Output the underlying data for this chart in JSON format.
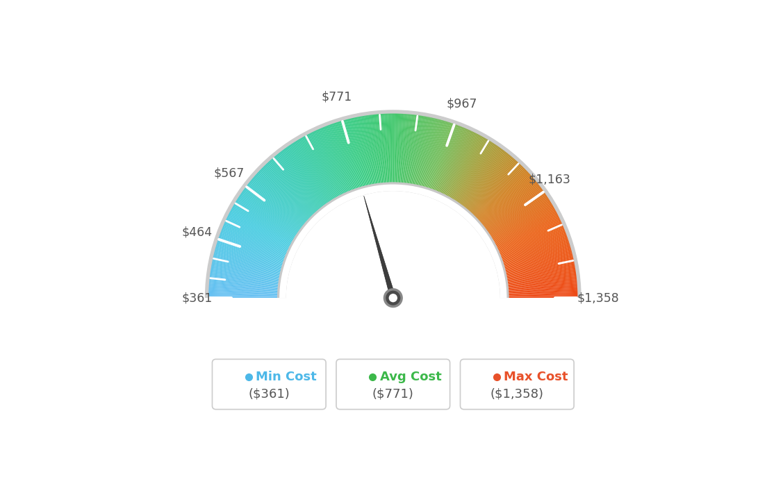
{
  "min_val": 361,
  "max_val": 1358,
  "avg_val": 771,
  "tick_values": [
    361,
    464,
    567,
    771,
    967,
    1163,
    1358
  ],
  "tick_labels": [
    "$361",
    "$464",
    "$567",
    "$771",
    "$967",
    "$1,163",
    "$1,358"
  ],
  "min_cost_label": "Min Cost",
  "avg_cost_label": "Avg Cost",
  "max_cost_label": "Max Cost",
  "min_cost_value": "($361)",
  "avg_cost_value": "($771)",
  "max_cost_value": "($1,358)",
  "dot_color_min": "#4DB8E8",
  "dot_color_avg": "#3CB84A",
  "dot_color_max": "#E8512A",
  "label_color_min": "#4DB8E8",
  "label_color_avg": "#3CB84A",
  "label_color_max": "#E8512A",
  "background_color": "#FFFFFF",
  "needle_value": 771,
  "color_stops": [
    [
      0.0,
      [
        0.4,
        0.75,
        0.95
      ]
    ],
    [
      0.15,
      [
        0.28,
        0.8,
        0.88
      ]
    ],
    [
      0.3,
      [
        0.22,
        0.8,
        0.68
      ]
    ],
    [
      0.42,
      [
        0.22,
        0.8,
        0.52
      ]
    ],
    [
      0.5,
      [
        0.25,
        0.78,
        0.42
      ]
    ],
    [
      0.6,
      [
        0.45,
        0.74,
        0.35
      ]
    ],
    [
      0.68,
      [
        0.65,
        0.62,
        0.22
      ]
    ],
    [
      0.76,
      [
        0.82,
        0.5,
        0.12
      ]
    ],
    [
      0.86,
      [
        0.92,
        0.38,
        0.08
      ]
    ],
    [
      1.0,
      [
        0.93,
        0.28,
        0.08
      ]
    ]
  ]
}
